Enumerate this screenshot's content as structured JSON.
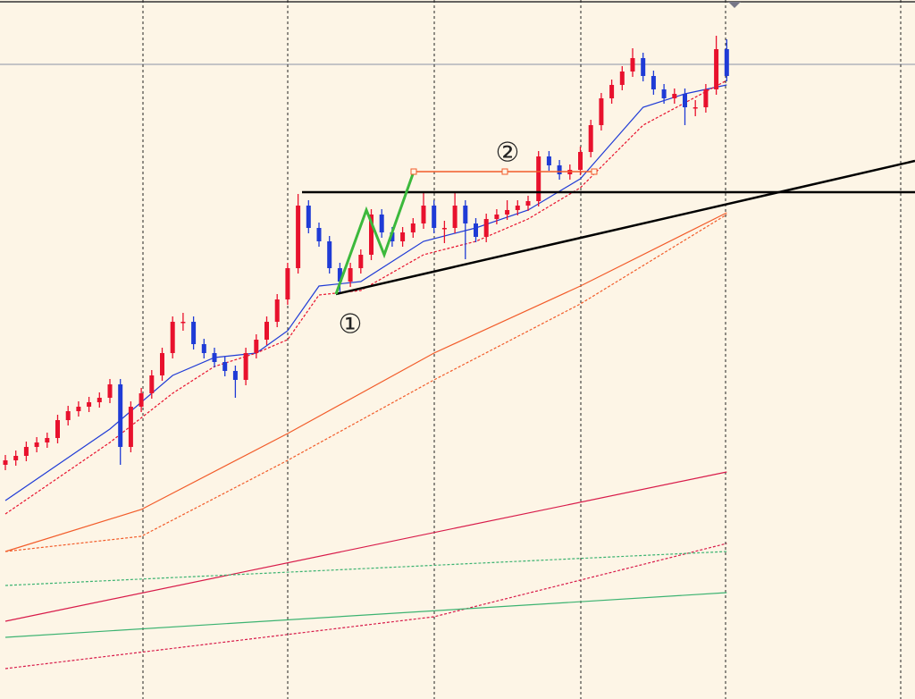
{
  "chart_data": {
    "type": "candlestick",
    "ylim": [
      0,
      782
    ],
    "up_color": "#e8112d",
    "down_color": "#1f3bd6",
    "open": [
      262,
      267,
      272,
      282,
      287,
      292,
      312,
      322,
      327,
      332,
      337,
      352,
      282,
      327,
      342,
      362,
      387,
      422,
      422,
      397,
      387,
      377,
      367,
      357,
      387,
      402,
      422,
      447,
      482,
      552,
      527,
      512,
      482,
      467,
      482,
      497,
      542,
      522,
      512,
      522,
      532,
      552,
      527,
      527,
      552,
      532,
      517,
      537,
      542,
      547,
      552,
      557,
      607,
      597,
      587,
      592,
      612,
      642,
      672,
      687,
      702,
      717,
      697,
      682,
      672,
      677,
      662,
      662,
      682,
      727
    ],
    "high": [
      273,
      278,
      288,
      293,
      298,
      318,
      328,
      333,
      338,
      343,
      358,
      358,
      333,
      348,
      368,
      393,
      428,
      432,
      428,
      403,
      393,
      383,
      373,
      393,
      408,
      428,
      453,
      488,
      565,
      558,
      533,
      518,
      488,
      488,
      503,
      548,
      548,
      528,
      528,
      538,
      568,
      558,
      535,
      568,
      558,
      538,
      543,
      548,
      558,
      558,
      563,
      613,
      613,
      603,
      598,
      618,
      648,
      678,
      693,
      708,
      728,
      723,
      703,
      688,
      683,
      683,
      670,
      688,
      742,
      738
    ],
    "low": [
      256,
      261,
      266,
      276,
      281,
      286,
      306,
      316,
      321,
      326,
      331,
      262,
      276,
      321,
      336,
      356,
      381,
      412,
      391,
      381,
      371,
      361,
      337,
      351,
      381,
      396,
      416,
      441,
      476,
      521,
      506,
      476,
      454,
      461,
      476,
      491,
      516,
      506,
      506,
      516,
      526,
      521,
      510,
      521,
      492,
      511,
      511,
      531,
      536,
      541,
      546,
      551,
      591,
      581,
      581,
      586,
      606,
      636,
      666,
      681,
      696,
      691,
      676,
      666,
      666,
      642,
      652,
      656,
      676,
      691
    ],
    "close": [
      267,
      272,
      282,
      287,
      292,
      312,
      322,
      327,
      332,
      337,
      352,
      282,
      327,
      342,
      362,
      387,
      422,
      422,
      397,
      387,
      377,
      367,
      357,
      387,
      402,
      422,
      447,
      482,
      552,
      527,
      512,
      482,
      467,
      482,
      497,
      542,
      522,
      512,
      522,
      532,
      552,
      527,
      527,
      552,
      532,
      517,
      537,
      542,
      547,
      552,
      557,
      607,
      597,
      587,
      592,
      612,
      642,
      672,
      687,
      702,
      717,
      697,
      682,
      672,
      677,
      662,
      662,
      682,
      727,
      697
    ],
    "overlays": [
      {
        "color": "#1f3bd6",
        "dash": "none",
        "x": [
          0,
          10,
          16,
          20,
          24,
          27,
          30,
          34,
          40,
          45,
          50,
          55,
          58,
          61,
          65,
          69
        ],
        "values": [
          222,
          302,
          362,
          382,
          387,
          412,
          462,
          467,
          512,
          527,
          547,
          582,
          622,
          662,
          677,
          687
        ]
      },
      {
        "color": "#e8112d",
        "dash": "3,2",
        "x": [
          0,
          10,
          16,
          20,
          24,
          27,
          30,
          34,
          40,
          45,
          50,
          55,
          58,
          61,
          65,
          69
        ],
        "values": [
          207,
          287,
          342,
          372,
          387,
          402,
          452,
          457,
          497,
          512,
          537,
          572,
          607,
          642,
          667,
          692
        ]
      },
      {
        "color": "#f25c2a",
        "dash": "none",
        "x": [
          0,
          13,
          27,
          41,
          55,
          69
        ],
        "values": [
          165,
          212,
          297,
          387,
          462,
          544
        ]
      },
      {
        "color": "#f25c2a",
        "dash": "3,2",
        "x": [
          0,
          13,
          27,
          41,
          55,
          69
        ],
        "values": [
          165,
          182,
          267,
          357,
          442,
          542
        ]
      },
      {
        "color": "#d81b4a",
        "dash": "none",
        "x": [
          0,
          69
        ],
        "values": [
          87,
          254
        ]
      },
      {
        "color": "#d81b4a",
        "dash": "3,2",
        "x": [
          0,
          41,
          69
        ],
        "values": [
          34,
          92,
          174
        ]
      },
      {
        "color": "#3cb371",
        "dash": "3,2",
        "x": [
          0,
          69
        ],
        "values": [
          127,
          165
        ]
      },
      {
        "color": "#3cb371",
        "dash": "none",
        "x": [
          0,
          69
        ],
        "values": [
          69,
          119
        ]
      }
    ],
    "annotations": [
      "①",
      "②"
    ]
  }
}
